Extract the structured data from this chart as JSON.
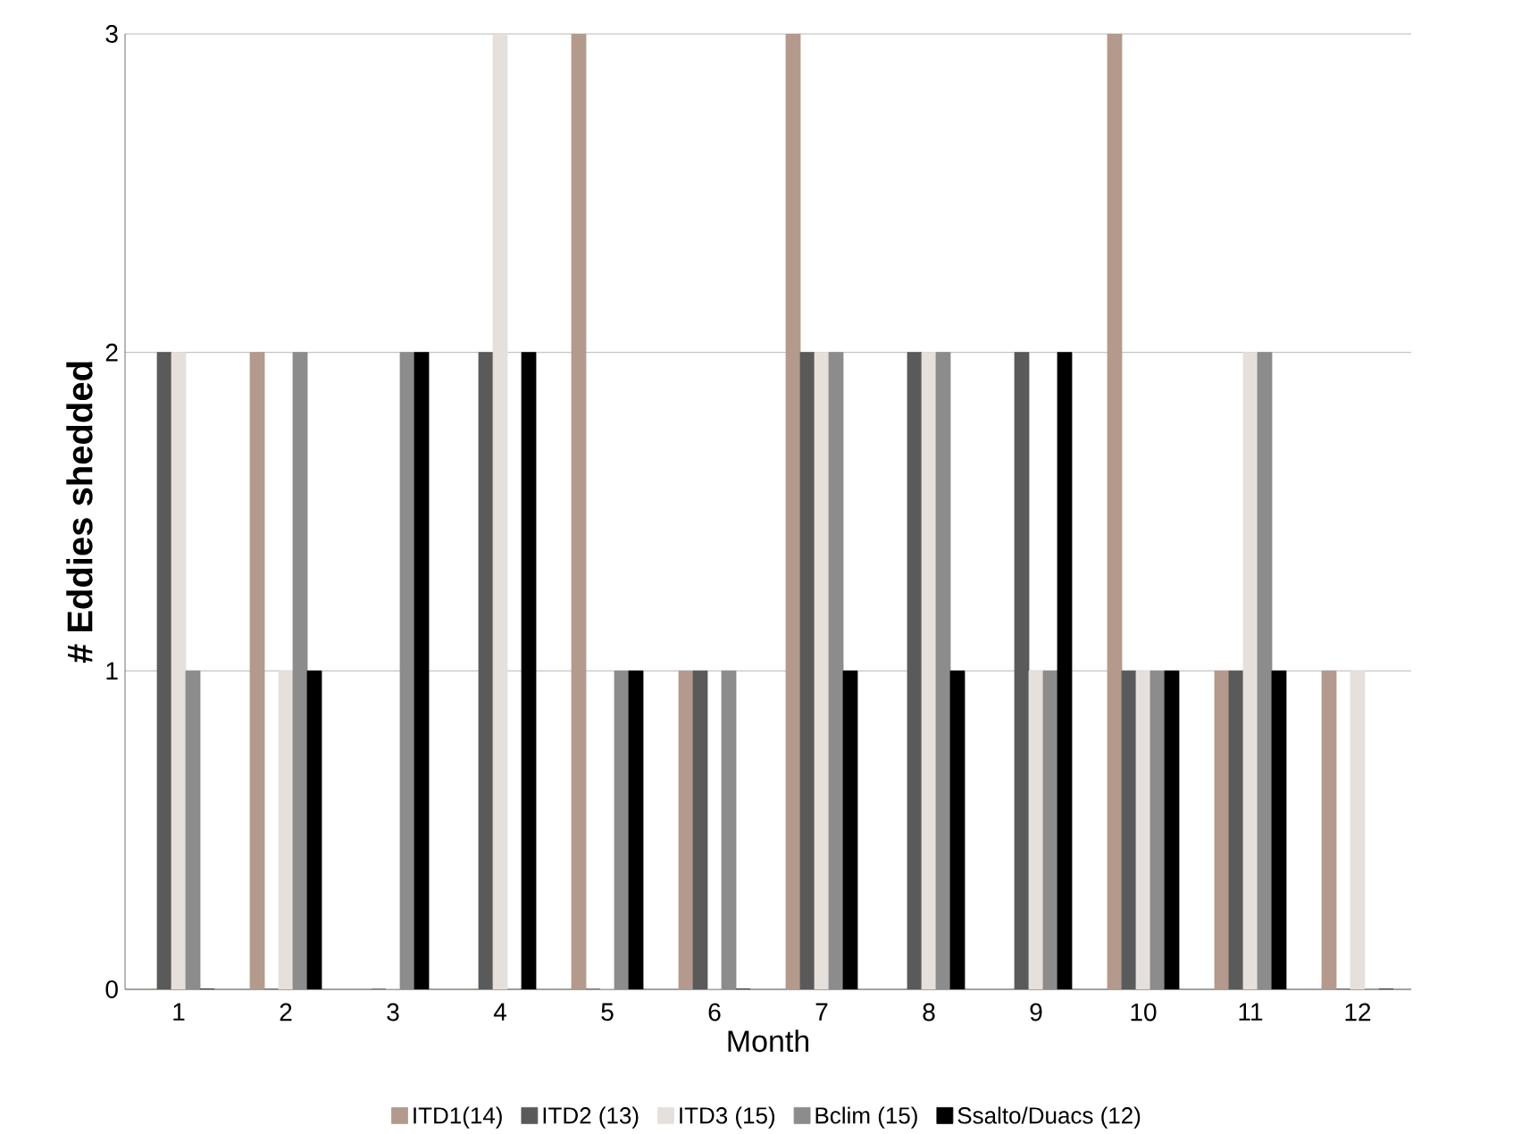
{
  "chart_data": {
    "type": "bar",
    "xlabel": "Month",
    "ylabel": "# Eddies shedded",
    "categories": [
      "1",
      "2",
      "3",
      "4",
      "5",
      "6",
      "7",
      "8",
      "9",
      "10",
      "11",
      "12"
    ],
    "series": [
      {
        "name": "ITD1(14)",
        "color": "#b39a8c",
        "values": [
          0,
          2,
          0,
          0,
          3,
          1,
          3,
          0,
          0,
          3,
          1,
          1
        ]
      },
      {
        "name": "ITD2 (13)",
        "color": "#5a5a5a",
        "values": [
          2,
          0,
          0,
          2,
          0,
          1,
          2,
          2,
          2,
          1,
          1,
          0
        ]
      },
      {
        "name": "ITD3 (15)",
        "color": "#e6e0dc",
        "values": [
          2,
          1,
          0,
          3,
          0,
          0,
          2,
          2,
          1,
          1,
          2,
          1
        ]
      },
      {
        "name": "Bclim (15)",
        "color": "#8c8c8c",
        "values": [
          1,
          2,
          2,
          0,
          1,
          1,
          2,
          2,
          1,
          1,
          2,
          0
        ]
      },
      {
        "name": "Ssalto/Duacs (12)",
        "color": "#000000",
        "values": [
          0,
          1,
          2,
          2,
          1,
          0,
          1,
          1,
          2,
          1,
          1,
          0
        ]
      }
    ],
    "ylim": [
      0,
      3
    ],
    "yticks": [
      0,
      1,
      2,
      3
    ],
    "grid": "y",
    "legend": "bottom"
  }
}
